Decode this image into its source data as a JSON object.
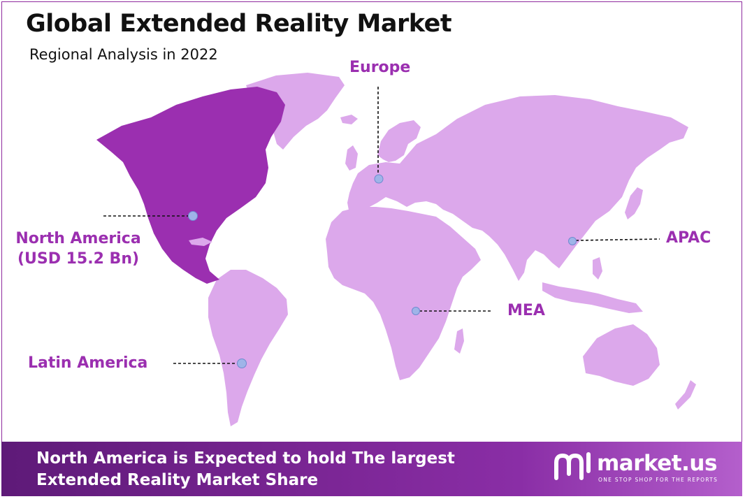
{
  "header": {
    "title": "Global Extended Reality Market",
    "subtitle": "Regional Analysis in 2022"
  },
  "colors": {
    "highlight_region": "#9b2fb0",
    "other_regions": "#dca8eb",
    "label_text": "#9b2fb0",
    "marker": "#9fb4e8"
  },
  "regions": [
    {
      "name": "North America",
      "line1": "North America",
      "line2": "(USD 15.2 Bn)",
      "highlighted": true
    },
    {
      "name": "Europe",
      "line1": "Europe",
      "highlighted": false
    },
    {
      "name": "APAC",
      "line1": "APAC",
      "highlighted": false
    },
    {
      "name": "MEA",
      "line1": "MEA",
      "highlighted": false
    },
    {
      "name": "Latin America",
      "line1": "Latin America",
      "highlighted": false
    }
  ],
  "footer": {
    "line1": "North America is Expected to hold The largest",
    "line2": "Extended Reality Market Share",
    "brand_name": "market.us",
    "brand_tagline": "ONE STOP SHOP FOR THE REPORTS"
  }
}
